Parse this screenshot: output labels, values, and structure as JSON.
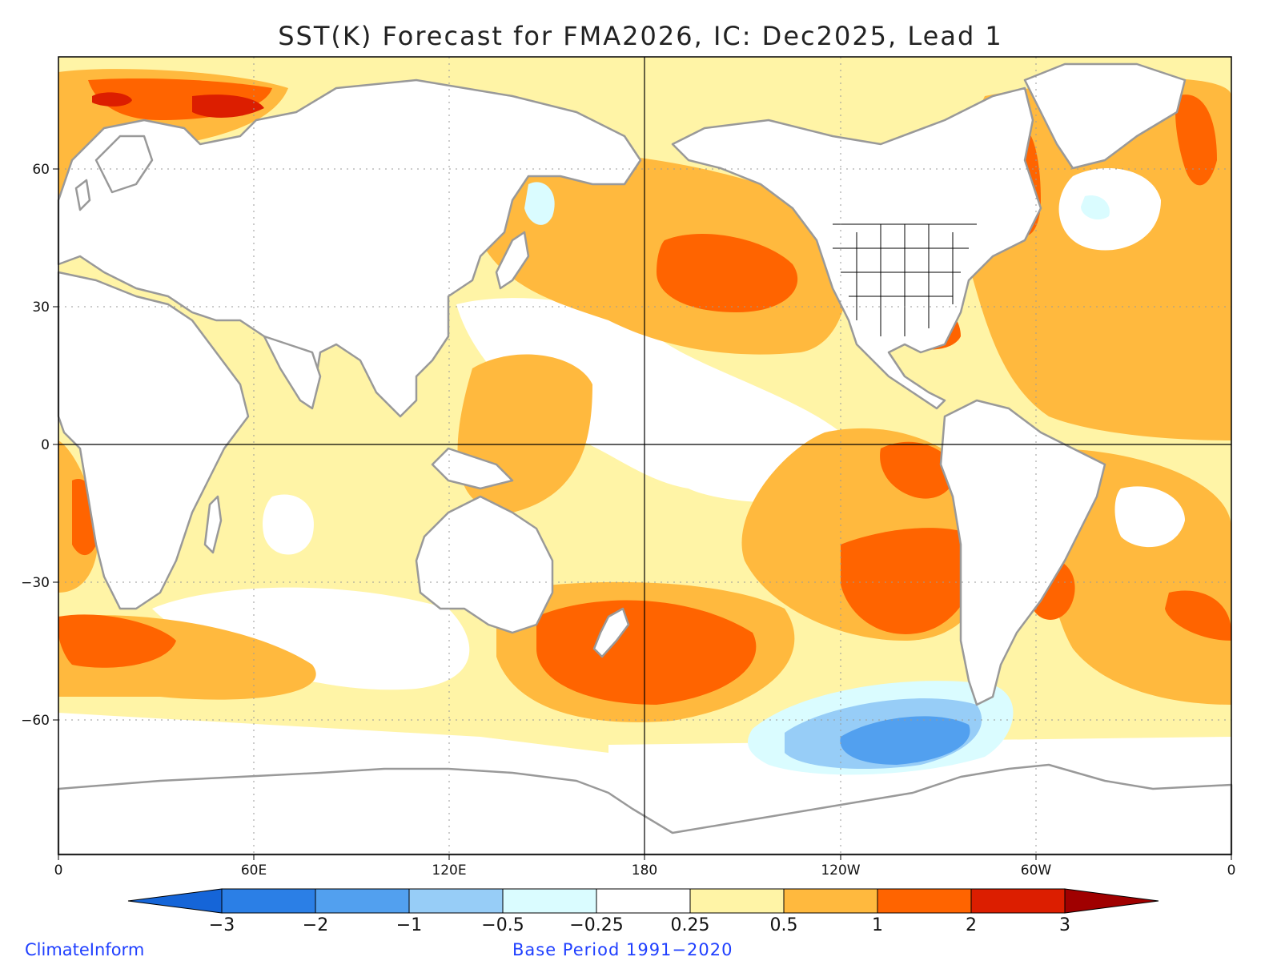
{
  "title": "SST(K) Forecast for FMA2026, IC: Dec2025, Lead 1",
  "axes": {
    "lat_ticks": [
      "60",
      "30",
      "0",
      "−30",
      "−60"
    ],
    "lon_ticks": [
      "0",
      "60E",
      "120E",
      "180",
      "120W",
      "60W",
      "0"
    ]
  },
  "colorbar": {
    "labels": [
      "−3",
      "−2",
      "−1",
      "−0.5",
      "−0.25",
      "0.25",
      "0.5",
      "1",
      "2",
      "3"
    ],
    "colors": {
      "lt_m3": "#1565d8",
      "m3_m2": "#2b7fe6",
      "m2_m1": "#52a0ef",
      "m1_m05": "#97cdf7",
      "m05_m025": "#dafcff",
      "m025_025": "#ffffff",
      "p025_05": "#fff4a6",
      "p05_1": "#ffb93e",
      "p1_2": "#ff6400",
      "p2_3": "#dc1e00",
      "gt_3": "#a00000"
    }
  },
  "land_color": "#ffffff",
  "coast_color": "#999999",
  "credit_left": "ClimateInform",
  "credit_center": "Base Period 1991−2020"
}
